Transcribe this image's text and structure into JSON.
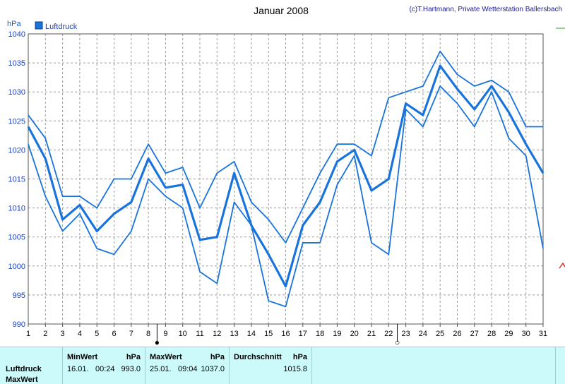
{
  "title": "Januar 2008",
  "copyright": "(c)T.Hartmann, Private Wetterstation Ballersbach",
  "unit": "hPa",
  "legend": "Luftdruck",
  "colors": {
    "series": "#1874dc",
    "grid": "#9a9a9a",
    "panel": "#ccfafa"
  },
  "chart_data": {
    "type": "line",
    "title": "Januar 2008",
    "ylabel": "hPa",
    "ylim": [
      990,
      1040
    ],
    "yticks": [
      990,
      995,
      1000,
      1005,
      1010,
      1015,
      1020,
      1025,
      1030,
      1035,
      1040
    ],
    "x": [
      1,
      2,
      3,
      4,
      5,
      6,
      7,
      8,
      9,
      10,
      11,
      12,
      13,
      14,
      15,
      16,
      17,
      18,
      19,
      20,
      21,
      22,
      23,
      24,
      25,
      26,
      27,
      28,
      29,
      30,
      31
    ],
    "xlim": [
      1,
      31
    ],
    "grid": true,
    "legend_position": "top-left",
    "moon_markers": [
      {
        "day": 9,
        "symbol": "●"
      },
      {
        "day": 23,
        "symbol": "○"
      }
    ],
    "series": [
      {
        "name": "Luftdruck",
        "role": "max",
        "values": [
          1026,
          1022,
          1012,
          1012,
          1010,
          1015,
          1015,
          1021,
          1016,
          1017,
          1010,
          1016,
          1018,
          1011,
          1008,
          1004,
          1010,
          1016,
          1021,
          1021,
          1019,
          1029,
          1030,
          1031,
          1037,
          1033,
          1031,
          1032,
          1030,
          1024,
          1024
        ]
      },
      {
        "role": "mean",
        "values": [
          1024,
          1018.5,
          1008,
          1010.5,
          1006,
          1009,
          1011,
          1018.5,
          1013.5,
          1014,
          1004.5,
          1005,
          1016,
          1007,
          1002,
          996.5,
          1007,
          1011,
          1018,
          1020,
          1013,
          1015,
          1028,
          1026,
          1034.5,
          1030.5,
          1027,
          1031,
          1026.5,
          1021,
          1016
        ]
      },
      {
        "role": "min",
        "values": [
          1021,
          1012,
          1006,
          1009,
          1003,
          1002,
          1006,
          1015,
          1012,
          1010,
          999,
          997,
          1011,
          1007,
          994,
          993,
          1004,
          1004,
          1014,
          1019,
          1004,
          1002,
          1027,
          1024,
          1031,
          1028,
          1024,
          1030,
          1022,
          1019,
          1003
        ]
      }
    ]
  },
  "stats": {
    "row1_label": "Luftdruck",
    "row2_label": "MaxWert",
    "min": {
      "header": "MinWert",
      "unit": "hPa",
      "date": "16.01.",
      "time": "00:24",
      "value": "993.0"
    },
    "max": {
      "header": "MaxWert",
      "unit": "hPa",
      "date": "25.01.",
      "time": "09:04",
      "value": "1037.0"
    },
    "avg": {
      "header": "Durchschnitt",
      "unit": "hPa",
      "value": "1015.8"
    }
  }
}
